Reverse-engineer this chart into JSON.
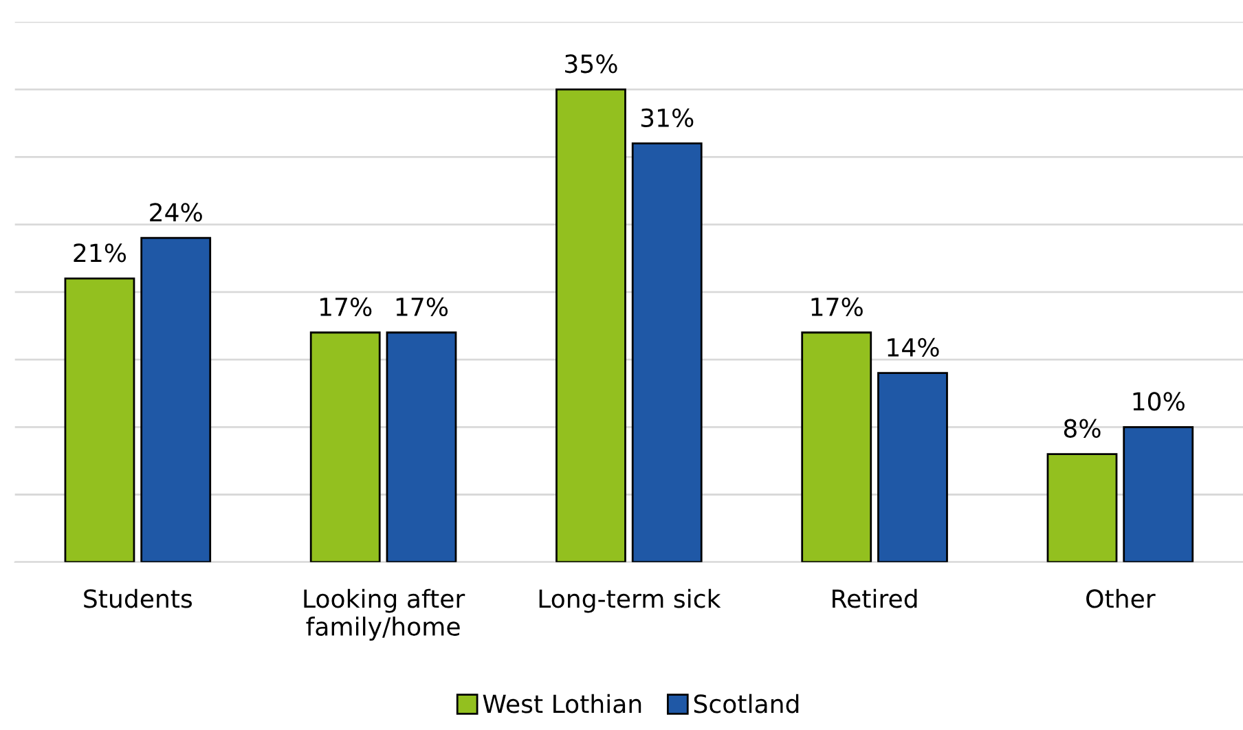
{
  "chart_data": {
    "type": "bar",
    "categories": [
      "Students",
      "Looking after\nfamily/home",
      "Long-term sick",
      "Retired",
      "Other"
    ],
    "series": [
      {
        "name": "West Lothian",
        "color": "#93c01f",
        "values": [
          21,
          17,
          35,
          17,
          8
        ],
        "value_labels": [
          "21%",
          "17%",
          "35%",
          "17%",
          "8%"
        ]
      },
      {
        "name": "Scotland",
        "color": "#1f58a6",
        "values": [
          24,
          17,
          31,
          14,
          10
        ],
        "value_labels": [
          "24%",
          "17%",
          "31%",
          "14%",
          "10%"
        ]
      }
    ],
    "ylim": [
      0,
      40
    ],
    "yticks": [
      {
        "value": 0,
        "label": null
      },
      {
        "value": 5,
        "label": null
      },
      {
        "value": 10,
        "label": null
      },
      {
        "value": 15,
        "label": null
      },
      {
        "value": 20,
        "label": null
      },
      {
        "value": 25,
        "label": null
      },
      {
        "value": 30,
        "label": null
      },
      {
        "value": 35,
        "label": null
      },
      {
        "value": 40,
        "label": null
      }
    ],
    "tick_labels": "x",
    "grid": "y",
    "legend": "bottom"
  }
}
